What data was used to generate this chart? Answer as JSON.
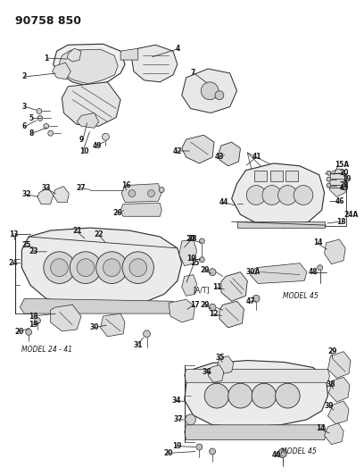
{
  "title": "90758 850",
  "bg_color": "#ffffff",
  "line_color": "#2a2a2a",
  "text_color": "#1a1a1a",
  "fig_width": 4.08,
  "fig_height": 5.33,
  "dpi": 100,
  "labels": {
    "top_left": "90758 850",
    "model_24_41": "MODEL 24 - 41",
    "model_45_mid": "MODEL 45",
    "model_45_bot": "MODEL 45",
    "at": "[A/T]",
    "30a": "30 A",
    "15a": "15 A",
    "24a": "24 A"
  }
}
